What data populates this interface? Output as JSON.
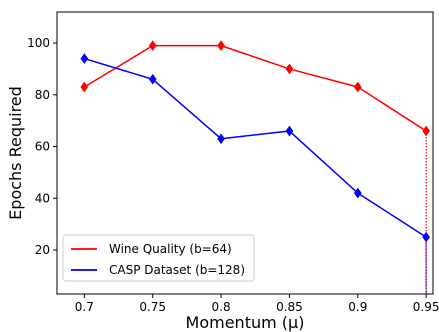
{
  "chart_data": {
    "type": "line",
    "xlabel": "Momentum (μ)",
    "ylabel": "Epochs Required",
    "x": [
      0.7,
      0.75,
      0.8,
      0.85,
      0.9,
      0.95
    ],
    "x_tick_labels": [
      "0.7",
      "0.75",
      "0.8",
      "0.85",
      "0.9",
      "0.95"
    ],
    "y_ticks": [
      20,
      40,
      60,
      80,
      100
    ],
    "xlim": [
      0.68,
      0.955
    ],
    "ylim": [
      3,
      112
    ],
    "grid": false,
    "legend_position": "lower-left",
    "series": [
      {
        "name": "Wine Quality (b=64)",
        "color": "#ff0000",
        "marker": "diamond",
        "values": [
          83,
          99,
          99,
          90,
          83,
          66
        ]
      },
      {
        "name": "CASP Dataset (b=128)",
        "color": "#0000ff",
        "marker": "diamond",
        "values": [
          94,
          86,
          63,
          66,
          42,
          25
        ]
      }
    ]
  }
}
